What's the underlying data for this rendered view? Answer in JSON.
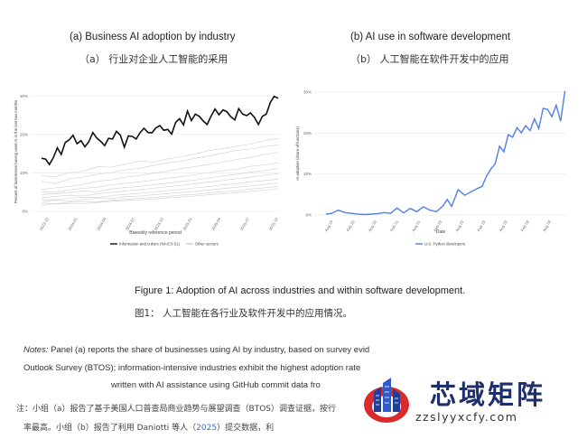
{
  "panel_a": {
    "title": "(a) Business AI adoption by industry",
    "title_cn": "（a） 行业对企业人工智能的采用"
  },
  "panel_b": {
    "title": "(b) AI use in software development",
    "title_cn": "（b） 人工智能在软件开发中的应用"
  },
  "figure_caption": "Figure 1: Adoption of AI across industries and within software development.",
  "figure_caption_cn": "图1：  人工智能在各行业及软件开发中的应用情况。",
  "notes": {
    "label": "Notes:",
    "line1": " Panel (a) reports the share of businesses using AI by industry, based on survey evid",
    "line2": "Outlook Survey (BTOS); information-intensive industries exhibit the highest adoption rate",
    "line3": "written with AI assistance using GitHub commit data fro"
  },
  "notes_cn": {
    "line1": "注：小组（a）报告了基于美国人口普查局商业趋势与展望调查（BTOS）调查证据，按行",
    "line2_pre": "率最高。小组（b）报告了利用 Daniotti 等人（",
    "line2_link": "2025",
    "line2_post": "）提交数据，利"
  },
  "watermark": {
    "text": "芯域矩阵",
    "url": "zzslyyxcfy.com"
  },
  "chart_data": [
    {
      "type": "line",
      "xlabel": "Biweekly reference period",
      "ylabel": "Percent of businesses having used AI in the last two months",
      "x_ticks": [
        "2023-10",
        "2024-01",
        "2024-04",
        "2024-07",
        "2024-10",
        "2025-01",
        "2025-04",
        "2025-07",
        "2025-10"
      ],
      "y_ticks": [
        "0%",
        "10%",
        "20%",
        "30%"
      ],
      "ylim": [
        0,
        31
      ],
      "legend_position": "bottom",
      "legend": [
        "Information and culture (NAICS 51)",
        "Other sectors"
      ],
      "highlight_series": {
        "name": "Information and culture (NAICS 51)",
        "values": [
          13.8,
          13.6,
          12.2,
          14.0,
          16.5,
          14.8,
          17.9,
          18.6,
          19.8,
          17.6,
          18.4,
          16.8,
          18.1,
          20.5,
          19.1,
          18.2,
          17.1,
          19.0,
          18.8,
          20.8,
          19.8,
          16.7,
          19.6,
          19.5,
          18.8,
          20.5,
          21.6,
          20.5,
          20.4,
          21.7,
          22.3,
          21.1,
          21.3,
          20.1,
          23.1,
          24.1,
          22.5,
          26.1,
          23.6,
          25.3,
          24.7,
          23.5,
          22.6,
          24.8,
          26.6,
          25.1,
          26.4,
          25.9,
          24.6,
          23.8,
          26.7,
          25.3,
          24.9,
          25.6,
          24.4,
          22.6,
          24.7,
          25.3,
          28.3,
          29.9,
          29.4
        ]
      },
      "other_series": [
        {
          "values": [
            9.3,
            9.0,
            10.1,
            10.4,
            11.6,
            11.5,
            12.2,
            13.1,
            12.8,
            13.6,
            14.2,
            14.9,
            15.8,
            16.3,
            16.9,
            17.5,
            18.4,
            19.0
          ]
        },
        {
          "values": [
            7.8,
            7.2,
            8.4,
            8.9,
            9.6,
            10.1,
            10.8,
            11.2,
            11.9,
            12.6,
            13.0,
            13.8,
            14.4,
            15.1,
            15.9,
            16.2,
            16.8,
            17.3
          ]
        },
        {
          "values": [
            5.7,
            6.1,
            6.5,
            7.0,
            7.8,
            8.2,
            8.9,
            9.3,
            9.9,
            10.4,
            11.1,
            11.6,
            12.2,
            12.8,
            13.5,
            14.0,
            14.8,
            15.3
          ]
        },
        {
          "values": [
            5.2,
            4.9,
            5.6,
            6.0,
            6.3,
            6.9,
            7.3,
            7.6,
            8.1,
            8.6,
            9.0,
            9.5,
            10.1,
            10.6,
            11.0,
            11.7,
            12.1,
            12.6
          ]
        },
        {
          "values": [
            4.4,
            4.6,
            4.9,
            5.3,
            5.1,
            5.8,
            6.2,
            6.5,
            6.9,
            7.3,
            7.8,
            8.1,
            8.7,
            9.2,
            9.6,
            10.2,
            10.6,
            11.1
          ]
        },
        {
          "values": [
            3.6,
            3.9,
            4.2,
            4.0,
            4.6,
            4.9,
            5.3,
            5.6,
            6.0,
            6.4,
            6.7,
            7.2,
            7.6,
            8.0,
            8.5,
            8.9,
            9.4,
            9.8
          ]
        },
        {
          "values": [
            3.1,
            3.0,
            3.4,
            3.7,
            3.5,
            4.1,
            4.4,
            4.7,
            5.0,
            5.4,
            5.7,
            6.1,
            6.4,
            6.9,
            7.2,
            7.7,
            8.0,
            8.4
          ]
        },
        {
          "values": [
            2.6,
            2.9,
            2.7,
            3.1,
            3.4,
            3.3,
            3.8,
            4.0,
            4.3,
            4.6,
            4.9,
            5.2,
            5.6,
            5.9,
            6.3,
            6.6,
            7.0,
            7.4
          ]
        },
        {
          "values": [
            2.2,
            2.0,
            2.4,
            2.6,
            2.5,
            2.9,
            3.1,
            3.4,
            3.6,
            3.9,
            4.2,
            4.4,
            4.8,
            5.1,
            5.4,
            5.8,
            6.1,
            6.5
          ]
        },
        {
          "values": [
            1.8,
            1.9,
            2.1,
            2.0,
            2.3,
            2.6,
            2.8,
            3.0,
            3.2,
            3.5,
            3.7,
            4.0,
            4.3,
            4.6,
            4.9,
            5.2,
            5.5,
            5.9
          ]
        }
      ]
    },
    {
      "type": "line",
      "xlabel": "Date",
      "ylabel": "AI adoption (share of functions)",
      "x_ticks": [
        "Aug 19",
        "Feb 20",
        "Aug 20",
        "Feb 21",
        "Aug 21",
        "Feb 22",
        "Aug 22",
        "Feb 23",
        "Aug 23",
        "Feb 24",
        "Aug 24"
      ],
      "y_ticks": [
        "0%",
        "10%",
        "20%",
        "30%"
      ],
      "ylim": [
        0,
        30
      ],
      "legend_position": "bottom",
      "series": [
        {
          "name": "U.S. Python developers",
          "color": "#4f7fe0",
          "x": [
            2019.42,
            2019.55,
            2019.7,
            2019.85,
            2020.0,
            2020.15,
            2020.3,
            2020.45,
            2020.6,
            2020.75,
            2020.9,
            2021.05,
            2021.2,
            2021.35,
            2021.5,
            2021.65,
            2021.8,
            2021.95,
            2022.1,
            2022.2,
            2022.3,
            2022.45,
            2022.6,
            2022.75,
            2022.9,
            2023.0,
            2023.1,
            2023.2,
            2023.3,
            2023.4,
            2023.5,
            2023.6,
            2023.7,
            2023.8,
            2023.9,
            2024.0,
            2024.1,
            2024.2,
            2024.3,
            2024.4,
            2024.5,
            2024.6,
            2024.7,
            2024.8,
            2024.9
          ],
          "y": [
            0.2,
            0.4,
            1.2,
            0.6,
            0.4,
            0.2,
            0.1,
            0.2,
            0.3,
            0.6,
            0.4,
            1.7,
            0.5,
            1.6,
            0.8,
            2.0,
            1.2,
            0.8,
            2.2,
            3.8,
            2.1,
            6.2,
            4.8,
            5.7,
            6.5,
            7.0,
            9.5,
            11.2,
            12.5,
            16.8,
            15.4,
            19.6,
            19.0,
            21.3,
            20.1,
            21.8,
            20.6,
            23.5,
            21.1,
            26.0,
            25.8,
            24.0,
            26.8,
            22.9,
            30.3
          ]
        }
      ]
    }
  ]
}
